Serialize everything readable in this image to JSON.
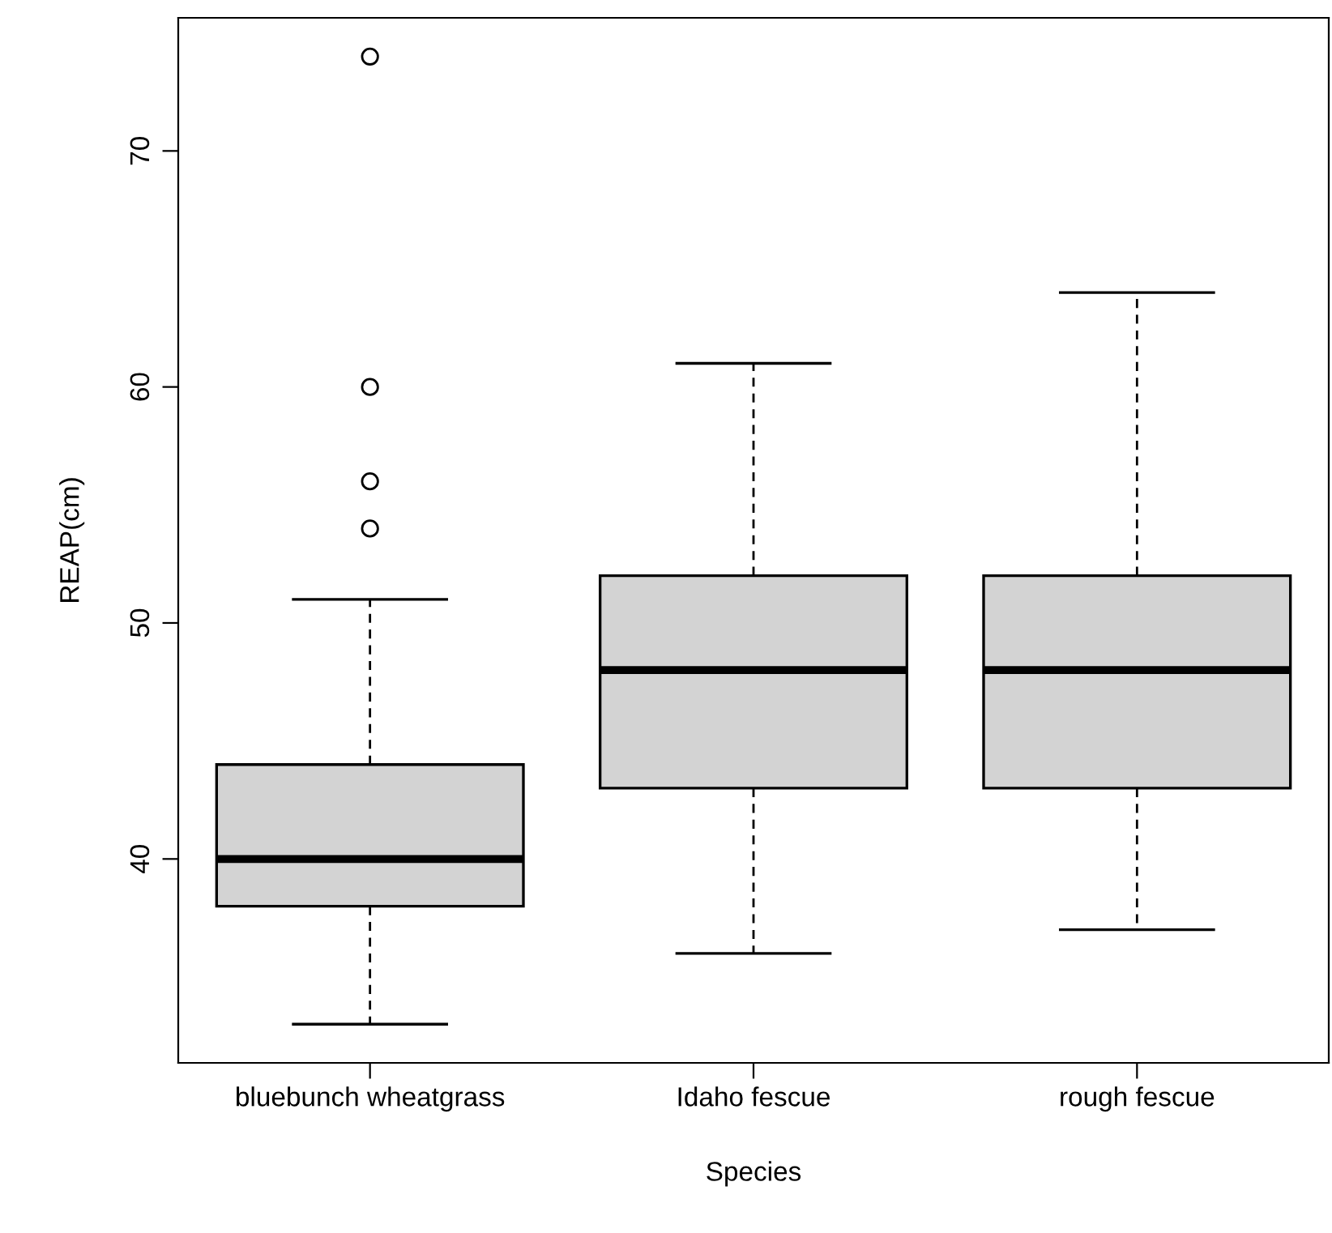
{
  "chart_data": {
    "type": "box",
    "xlabel": "Species",
    "ylabel": "REAP(cm)",
    "categories": [
      "bluebunch wheatgrass",
      "Idaho fescue",
      "rough fescue"
    ],
    "color": "#d3d3d3",
    "boxes": [
      {
        "low": 33,
        "q1": 38,
        "median": 40,
        "q3": 44,
        "high": 51,
        "outliers": [
          54,
          56,
          60,
          74
        ]
      },
      {
        "low": 36,
        "q1": 43,
        "median": 48,
        "q3": 52,
        "high": 61
      },
      {
        "low": 37,
        "q1": 43,
        "median": 48,
        "q3": 52,
        "high": 64
      }
    ],
    "ylim": [
      31.36,
      75.64
    ],
    "yticks": [
      40,
      50,
      60,
      70
    ],
    "grid": false,
    "legend": false
  }
}
